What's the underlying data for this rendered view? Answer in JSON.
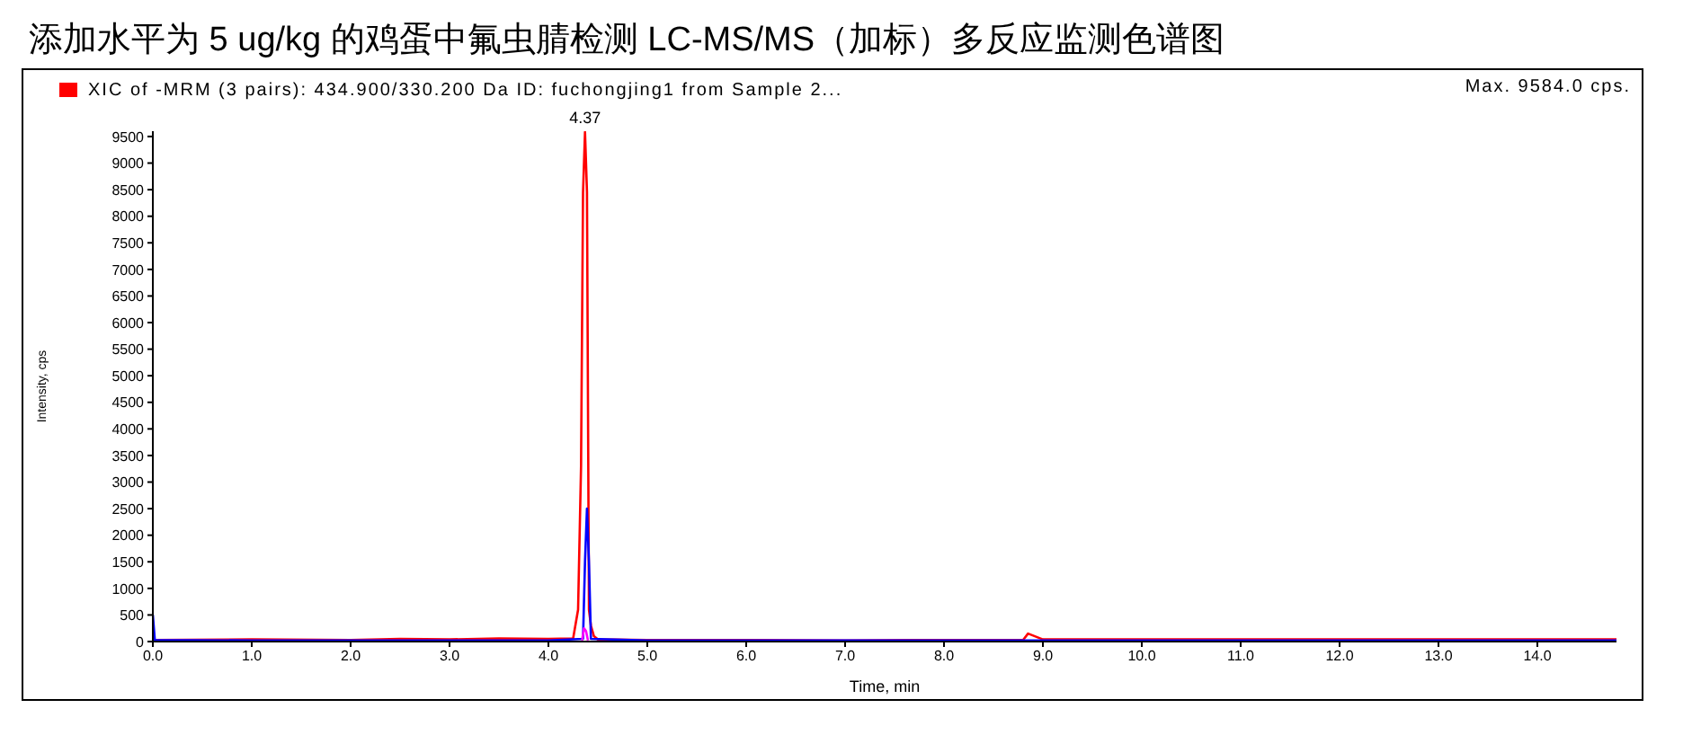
{
  "chart_data": {
    "type": "line",
    "title": "添加水平为 5 ug/kg 的鸡蛋中氟虫腈检测 LC-MS/MS（加标）多反应监测色谱图",
    "xlabel": "Time, min",
    "ylabel": "Intensity, cps",
    "xlim": [
      0,
      14.8
    ],
    "ylim": [
      0,
      9600
    ],
    "xticks": [
      {
        "value": 0,
        "label": "0.0"
      },
      {
        "value": 1,
        "label": "1.0"
      },
      {
        "value": 2,
        "label": "2.0"
      },
      {
        "value": 3,
        "label": "3.0"
      },
      {
        "value": 4,
        "label": "4.0"
      },
      {
        "value": 5,
        "label": "5.0"
      },
      {
        "value": 6,
        "label": "6.0"
      },
      {
        "value": 7,
        "label": "7.0"
      },
      {
        "value": 8,
        "label": "8.0"
      },
      {
        "value": 9,
        "label": "9.0"
      },
      {
        "value": 10,
        "label": "10.0"
      },
      {
        "value": 11,
        "label": "11.0"
      },
      {
        "value": 12,
        "label": "12.0"
      },
      {
        "value": 13,
        "label": "13.0"
      },
      {
        "value": 14,
        "label": "14.0"
      }
    ],
    "yticks": [
      0,
      500,
      1000,
      1500,
      2000,
      2500,
      3000,
      3500,
      4000,
      4500,
      5000,
      5500,
      6000,
      6500,
      7000,
      7500,
      8000,
      8500,
      9000,
      9500
    ],
    "legend": "top left",
    "marker": "none",
    "line_style": "solid",
    "annotations": [
      {
        "text": "4.37",
        "x": 4.37,
        "y": 9584
      },
      "Max. 9584.0 cps."
    ],
    "series": [
      {
        "name": "XIC of -MRM (3 pairs): 434.900/330.200 Da ID: fuchongjing1 from Sample 2...",
        "color": "#ff0000",
        "x": [
          0,
          1,
          2,
          2.5,
          3,
          3.5,
          4,
          4.25,
          4.3,
          4.33,
          4.35,
          4.37,
          4.39,
          4.41,
          4.43,
          4.46,
          4.5,
          5,
          6,
          7,
          8,
          8.8,
          8.85,
          9,
          10,
          11,
          12,
          13,
          14,
          14.8
        ],
        "values": [
          30,
          40,
          30,
          50,
          40,
          60,
          50,
          60,
          600,
          3300,
          8450,
          9584,
          8450,
          600,
          300,
          100,
          40,
          30,
          30,
          20,
          30,
          30,
          150,
          40,
          40,
          40,
          40,
          40,
          40,
          40
        ]
      },
      {
        "color": "#0000ff",
        "x": [
          0,
          0.02,
          1,
          2,
          3,
          4,
          4.35,
          4.37,
          4.39,
          4.41,
          4.43,
          5,
          8,
          14.8
        ],
        "values": [
          500,
          30,
          20,
          20,
          20,
          20,
          50,
          1500,
          2500,
          1500,
          50,
          20,
          20,
          20
        ]
      },
      {
        "color": "#ff00ff",
        "x": [
          4.34,
          4.36,
          4.38,
          4.4
        ],
        "values": [
          20,
          250,
          200,
          20
        ]
      }
    ]
  }
}
